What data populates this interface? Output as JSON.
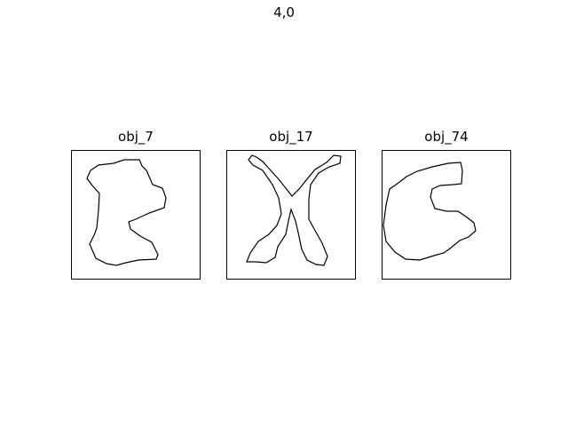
{
  "figure": {
    "title": "4,0",
    "panels": [
      {
        "title": "obj_7"
      },
      {
        "title": "obj_17"
      },
      {
        "title": "obj_74"
      }
    ]
  },
  "colors": {
    "background": "#ffffff",
    "frame": "#000000",
    "outline": "#000000"
  }
}
